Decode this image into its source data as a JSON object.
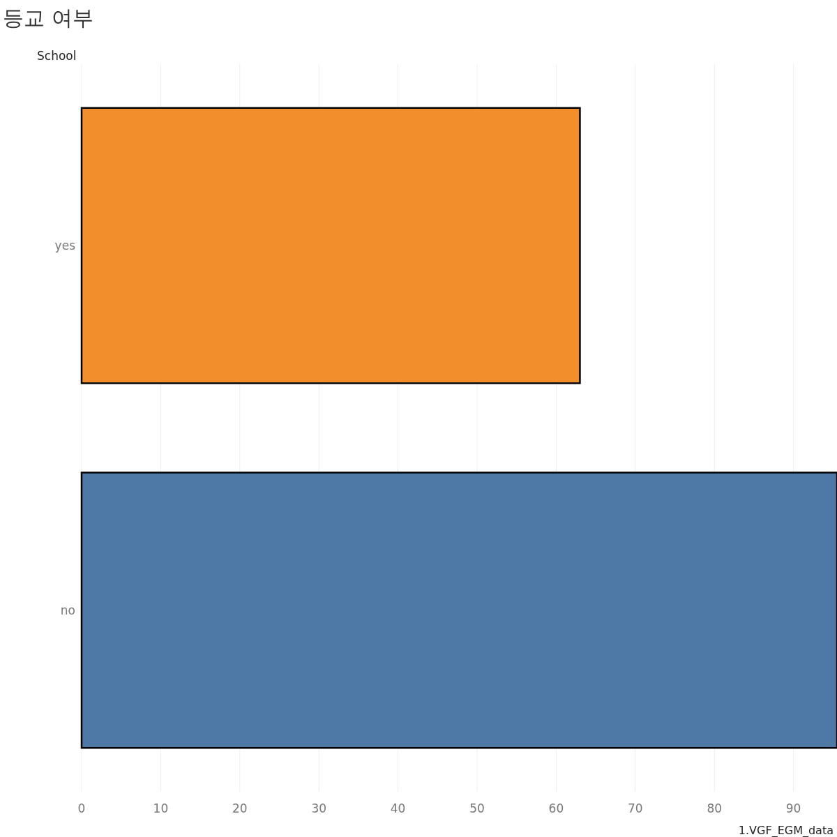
{
  "chart_data": {
    "type": "bar",
    "title": "등교 여부",
    "ylabel": "School",
    "xlabel": "1.VGF_EGM_data",
    "orientation": "horizontal",
    "categories": [
      "yes",
      "no"
    ],
    "values": [
      63,
      95.5
    ],
    "colors": [
      "#f28e2b",
      "#4e79a7"
    ],
    "xlim": [
      0,
      95.5
    ],
    "xticks": [
      0,
      10,
      20,
      30,
      40,
      50,
      60,
      70,
      80,
      90
    ],
    "grid": "x"
  }
}
